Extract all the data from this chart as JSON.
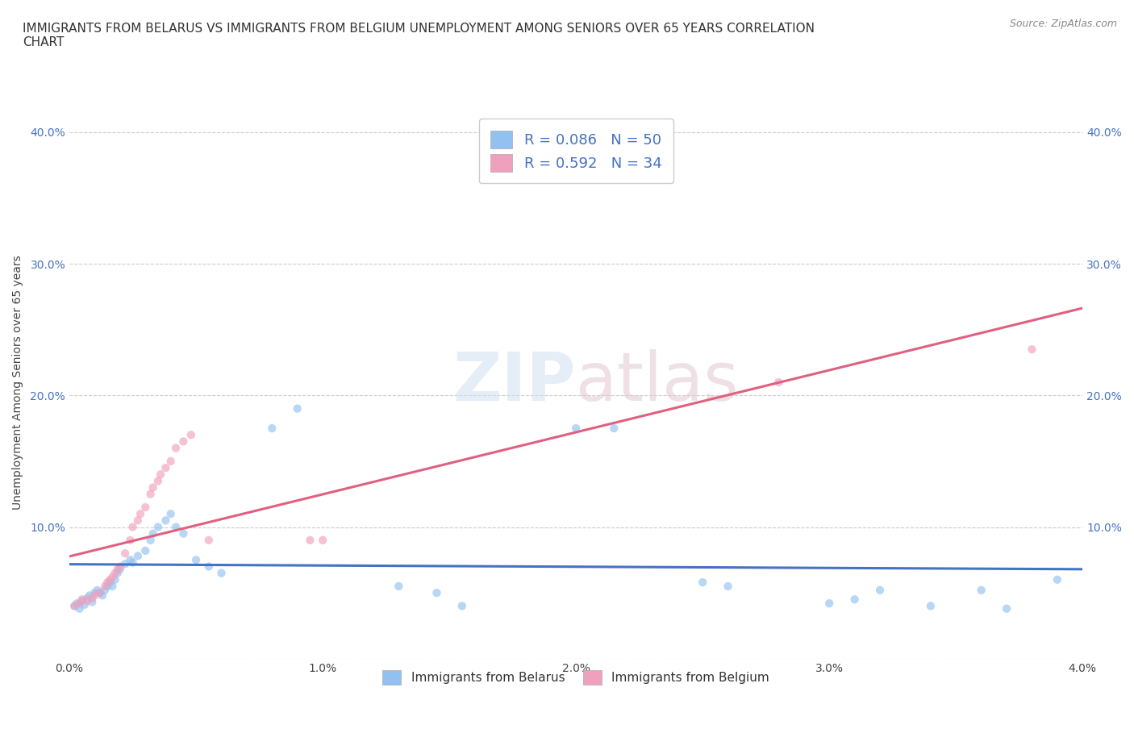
{
  "title": "IMMIGRANTS FROM BELARUS VS IMMIGRANTS FROM BELGIUM UNEMPLOYMENT AMONG SENIORS OVER 65 YEARS CORRELATION\nCHART",
  "source": "Source: ZipAtlas.com",
  "ylabel": "Unemployment Among Seniors over 65 years",
  "watermark": "ZIPatlas",
  "xlim": [
    0.0,
    0.04
  ],
  "ylim": [
    0.0,
    0.42
  ],
  "xticks": [
    0.0,
    0.01,
    0.02,
    0.03,
    0.04
  ],
  "xtick_labels": [
    "0.0%",
    "1.0%",
    "2.0%",
    "3.0%",
    "4.0%"
  ],
  "yticks": [
    0.0,
    0.1,
    0.2,
    0.3,
    0.4
  ],
  "belarus_scatter_x": [
    0.0002,
    0.0003,
    0.0004,
    0.0005,
    0.0006,
    0.0007,
    0.0008,
    0.0009,
    0.001,
    0.0011,
    0.0012,
    0.0013,
    0.0014,
    0.0015,
    0.0016,
    0.0017,
    0.0018,
    0.0019,
    0.002,
    0.0022,
    0.0024,
    0.0025,
    0.0027,
    0.003,
    0.0032,
    0.0033,
    0.0035,
    0.0038,
    0.004,
    0.0042,
    0.0045,
    0.005,
    0.0055,
    0.006,
    0.008,
    0.009,
    0.013,
    0.0145,
    0.0155,
    0.02,
    0.0215,
    0.025,
    0.026,
    0.03,
    0.031,
    0.032,
    0.034,
    0.036,
    0.037,
    0.039
  ],
  "belarus_scatter_y": [
    0.04,
    0.042,
    0.038,
    0.044,
    0.041,
    0.046,
    0.048,
    0.043,
    0.05,
    0.052,
    0.05,
    0.048,
    0.052,
    0.055,
    0.058,
    0.055,
    0.06,
    0.065,
    0.068,
    0.072,
    0.075,
    0.073,
    0.078,
    0.082,
    0.09,
    0.095,
    0.1,
    0.105,
    0.11,
    0.1,
    0.095,
    0.075,
    0.07,
    0.065,
    0.175,
    0.19,
    0.055,
    0.05,
    0.04,
    0.175,
    0.175,
    0.058,
    0.055,
    0.042,
    0.045,
    0.052,
    0.04,
    0.052,
    0.038,
    0.06
  ],
  "belgium_scatter_x": [
    0.0002,
    0.0004,
    0.0005,
    0.0007,
    0.0009,
    0.001,
    0.0012,
    0.0014,
    0.0015,
    0.0016,
    0.0017,
    0.0018,
    0.0019,
    0.002,
    0.0022,
    0.0024,
    0.0025,
    0.0027,
    0.0028,
    0.003,
    0.0032,
    0.0033,
    0.0035,
    0.0036,
    0.0038,
    0.004,
    0.0042,
    0.0045,
    0.0048,
    0.0055,
    0.0095,
    0.01,
    0.028,
    0.038
  ],
  "belgium_scatter_y": [
    0.04,
    0.042,
    0.045,
    0.044,
    0.046,
    0.048,
    0.05,
    0.055,
    0.058,
    0.06,
    0.062,
    0.065,
    0.068,
    0.07,
    0.08,
    0.09,
    0.1,
    0.105,
    0.11,
    0.115,
    0.125,
    0.13,
    0.135,
    0.14,
    0.145,
    0.15,
    0.16,
    0.165,
    0.17,
    0.09,
    0.09,
    0.09,
    0.21,
    0.235
  ],
  "belarus_color": "#92c0f0",
  "belgium_color": "#f0a0bc",
  "belarus_line_color": "#4472c4",
  "belgium_line_color": "#e06080",
  "grid_color": "#cccccc",
  "background_color": "#ffffff",
  "title_fontsize": 11,
  "label_fontsize": 10,
  "tick_fontsize": 10,
  "dot_size": 55,
  "dot_alpha": 0.65,
  "belarus_R": 0.086,
  "belarus_N": 50,
  "belgium_R": 0.592,
  "belgium_N": 34,
  "legend_label_color": "#4472c4"
}
